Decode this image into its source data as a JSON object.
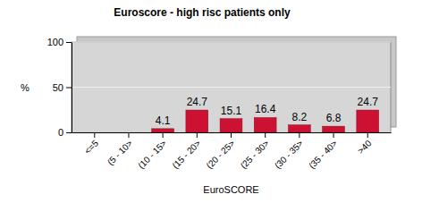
{
  "chart_data": {
    "type": "bar",
    "title": "Euroscore - high risc patients only",
    "x_label": "EuroSCORE",
    "y_label": "%",
    "categories": [
      "<=5",
      "(5 - 10>",
      "(10 - 15>",
      "(15 - 20>",
      "(20 - 25>",
      "(25 - 30>",
      "(30 - 35>",
      "(35 - 40>",
      ">40"
    ],
    "values": [
      null,
      null,
      4.1,
      24.7,
      15.1,
      16.4,
      8.2,
      6.8,
      24.7
    ],
    "color": "#cc1133",
    "ylim": [
      0,
      100
    ],
    "yticks": [
      0,
      50,
      100
    ],
    "grid": true,
    "data_labels": true
  }
}
